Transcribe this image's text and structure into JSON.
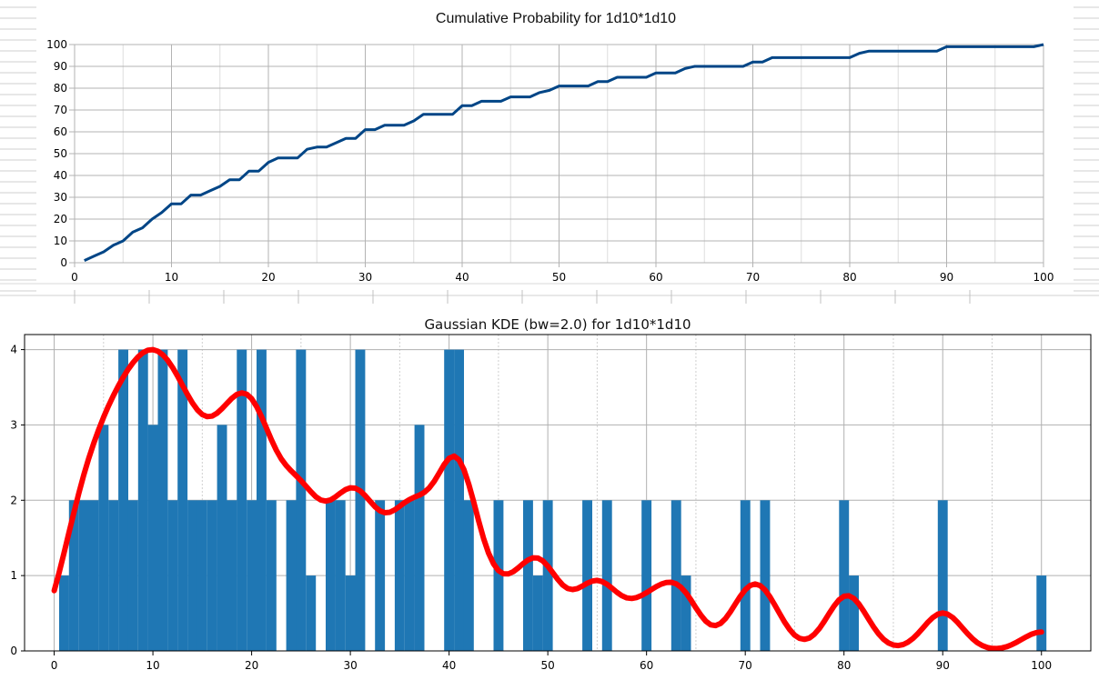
{
  "chart_data": [
    {
      "type": "line",
      "title": "Cumulative Probability for 1d10*1d10",
      "xlabel": "",
      "ylabel": "",
      "xlim": [
        0,
        100
      ],
      "ylim": [
        0,
        100
      ],
      "x_ticks": [
        "0",
        "10",
        "20",
        "30",
        "40",
        "50",
        "60",
        "70",
        "80",
        "90",
        "100"
      ],
      "y_ticks": [
        "0",
        "10",
        "20",
        "30",
        "40",
        "50",
        "60",
        "70",
        "80",
        "90",
        "100"
      ],
      "grid": true,
      "line_color": "#004586",
      "series": [
        {
          "x": [
            1,
            2,
            3,
            4,
            5,
            6,
            7,
            8,
            9,
            10,
            11,
            12,
            13,
            14,
            15,
            16,
            17,
            18,
            19,
            20,
            21,
            22,
            23,
            24,
            25,
            26,
            27,
            28,
            29,
            30,
            31,
            32,
            33,
            34,
            35,
            36,
            37,
            38,
            39,
            40,
            41,
            42,
            43,
            44,
            45,
            46,
            47,
            48,
            49,
            50,
            51,
            52,
            53,
            54,
            55,
            56,
            57,
            58,
            59,
            60,
            61,
            62,
            63,
            64,
            65,
            66,
            67,
            68,
            69,
            70,
            71,
            72,
            73,
            74,
            75,
            76,
            77,
            78,
            79,
            80,
            81,
            82,
            83,
            84,
            85,
            86,
            87,
            88,
            89,
            90,
            91,
            92,
            93,
            94,
            95,
            96,
            97,
            98,
            99,
            100
          ],
          "y": [
            1,
            3,
            5,
            8,
            10,
            14,
            16,
            20,
            23,
            27,
            27,
            31,
            31,
            33,
            35,
            38,
            38,
            42,
            42,
            46,
            48,
            48,
            48,
            52,
            53,
            53,
            55,
            57,
            57,
            61,
            61,
            63,
            63,
            63,
            65,
            68,
            68,
            68,
            68,
            72,
            72,
            74,
            74,
            74,
            76,
            76,
            76,
            78,
            79,
            81,
            81,
            81,
            81,
            83,
            83,
            85,
            85,
            85,
            85,
            87,
            87,
            87,
            89,
            90,
            90,
            90,
            90,
            90,
            90,
            92,
            92,
            94,
            94,
            94,
            94,
            94,
            94,
            94,
            94,
            94,
            96,
            97,
            97,
            97,
            97,
            97,
            97,
            97,
            97,
            99,
            99,
            99,
            99,
            99,
            99,
            99,
            99,
            99,
            99,
            100
          ]
        }
      ]
    },
    {
      "type": "bar",
      "title": "Gaussian KDE (bw=2.0) for 1d10*1d10",
      "xlabel": "",
      "ylabel": "",
      "xlim": [
        -3,
        105
      ],
      "ylim": [
        0,
        4.2
      ],
      "x_ticks": [
        "0",
        "10",
        "20",
        "30",
        "40",
        "50",
        "60",
        "70",
        "80",
        "90",
        "100"
      ],
      "y_ticks": [
        "0",
        "1",
        "2",
        "3",
        "4"
      ],
      "grid": true,
      "bar_color": "#1f77b4",
      "kde_color": "#ff0000",
      "bandwidth": 2.0,
      "bins": [
        {
          "x": 1,
          "count": 1
        },
        {
          "x": 2,
          "count": 2
        },
        {
          "x": 3,
          "count": 2
        },
        {
          "x": 4,
          "count": 2
        },
        {
          "x": 5,
          "count": 3
        },
        {
          "x": 6,
          "count": 2
        },
        {
          "x": 7,
          "count": 4
        },
        {
          "x": 8,
          "count": 2
        },
        {
          "x": 9,
          "count": 4
        },
        {
          "x": 10,
          "count": 3
        },
        {
          "x": 11,
          "count": 4
        },
        {
          "x": 12,
          "count": 2
        },
        {
          "x": 13,
          "count": 4
        },
        {
          "x": 14,
          "count": 2
        },
        {
          "x": 15,
          "count": 2
        },
        {
          "x": 16,
          "count": 2
        },
        {
          "x": 17,
          "count": 3
        },
        {
          "x": 18,
          "count": 2
        },
        {
          "x": 19,
          "count": 4
        },
        {
          "x": 20,
          "count": 2
        },
        {
          "x": 21,
          "count": 4
        },
        {
          "x": 22,
          "count": 2
        },
        {
          "x": 24,
          "count": 2
        },
        {
          "x": 25,
          "count": 4
        },
        {
          "x": 26,
          "count": 1
        },
        {
          "x": 28,
          "count": 2
        },
        {
          "x": 29,
          "count": 2
        },
        {
          "x": 30,
          "count": 1
        },
        {
          "x": 31,
          "count": 4
        },
        {
          "x": 33,
          "count": 2
        },
        {
          "x": 35,
          "count": 2
        },
        {
          "x": 36,
          "count": 2
        },
        {
          "x": 37,
          "count": 3
        },
        {
          "x": 40,
          "count": 4
        },
        {
          "x": 41,
          "count": 4
        },
        {
          "x": 42,
          "count": 2
        },
        {
          "x": 45,
          "count": 2
        },
        {
          "x": 48,
          "count": 2
        },
        {
          "x": 49,
          "count": 1
        },
        {
          "x": 50,
          "count": 2
        },
        {
          "x": 54,
          "count": 2
        },
        {
          "x": 56,
          "count": 2
        },
        {
          "x": 60,
          "count": 2
        },
        {
          "x": 63,
          "count": 2
        },
        {
          "x": 64,
          "count": 1
        },
        {
          "x": 70,
          "count": 2
        },
        {
          "x": 72,
          "count": 2
        },
        {
          "x": 80,
          "count": 2
        },
        {
          "x": 81,
          "count": 1
        },
        {
          "x": 90,
          "count": 2
        },
        {
          "x": 100,
          "count": 1
        }
      ]
    }
  ]
}
